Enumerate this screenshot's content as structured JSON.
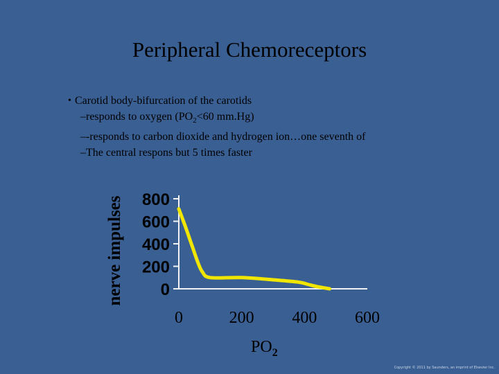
{
  "slide": {
    "title": "Peripheral Chemoreceptors",
    "bullet_main": "Carotid body-bifurcation of the carotids",
    "sub1_pre": "–responds to oxygen (PO",
    "sub1_sub": "2",
    "sub1_post": "<60 mm.Hg)",
    "sub2": "–-responds to carbon dioxide and hydrogen ion…one seventh of",
    "sub3": "–The central respons but 5 times faster",
    "copyright": "Copyright © 2011 by Saunders, an imprint of Elsevier Inc."
  },
  "colors": {
    "background": "#3a5f93",
    "curve": "#f0e600",
    "axis": "#f2f2f2",
    "text": "#000000"
  },
  "chart_data": {
    "type": "line",
    "ylabel": "nerve impulses",
    "xlabel_main": "PO",
    "xlabel_sub": "2",
    "x_ticks": [
      "0",
      "200",
      "400",
      "600"
    ],
    "y_ticks": [
      "800",
      "600",
      "400",
      "200",
      "0"
    ],
    "xlim": [
      0,
      600
    ],
    "ylim": [
      0,
      800
    ],
    "series": [
      {
        "x": [
          0,
          20,
          40,
          60,
          75,
          100,
          200,
          300,
          380,
          410,
          440,
          480
        ],
        "y": [
          710,
          560,
          400,
          240,
          150,
          100,
          100,
          80,
          60,
          40,
          20,
          0
        ]
      }
    ]
  }
}
